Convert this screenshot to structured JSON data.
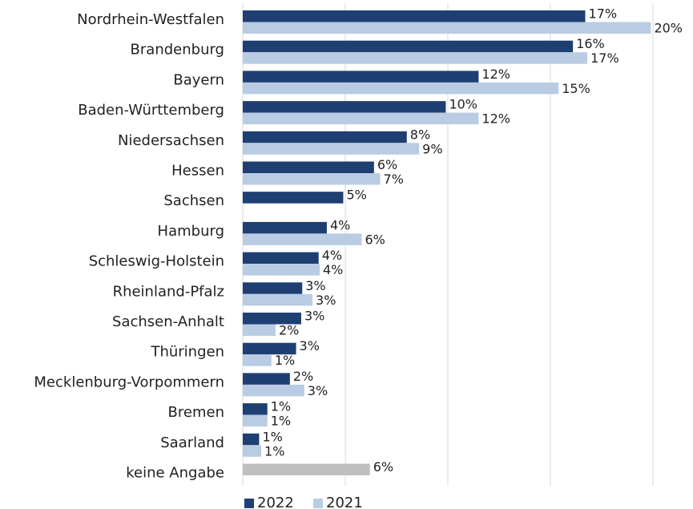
{
  "chart_data": {
    "type": "hbar",
    "categories": [
      "Nordrhein-Westfalen",
      "Brandenburg",
      "Bayern",
      "Baden-Württemberg",
      "Niedersachsen",
      "Hessen",
      "Sachsen",
      "Hamburg",
      "Schleswig-Holstein",
      "Rheinland-Pfalz",
      "Sachsen-Anhalt",
      "Thüringen",
      "Mecklenburg-Vorpommern",
      "Bremen",
      "Saarland",
      "keine Angabe"
    ],
    "series": [
      {
        "name": "2022",
        "color": "#1f3f73",
        "values": [
          16.7,
          16.1,
          11.5,
          9.9,
          8.0,
          6.4,
          4.9,
          4.1,
          3.7,
          2.9,
          2.85,
          2.6,
          2.3,
          1.2,
          0.8,
          6.2
        ],
        "value_labels": [
          "17%",
          "16%",
          "12%",
          "10%",
          "8%",
          "6%",
          "5%",
          "4%",
          "4%",
          "3%",
          "3%",
          "3%",
          "2%",
          "1%",
          "1%",
          "6%"
        ],
        "point_colors": [
          null,
          null,
          null,
          null,
          null,
          null,
          null,
          null,
          null,
          null,
          null,
          null,
          null,
          null,
          null,
          "#bfbfbf"
        ]
      },
      {
        "name": "2021",
        "color": "#b9cce4",
        "values": [
          19.9,
          16.8,
          15.4,
          11.5,
          8.6,
          6.7,
          null,
          5.8,
          3.75,
          3.4,
          1.6,
          1.4,
          3.0,
          1.2,
          0.9,
          null
        ],
        "value_labels": [
          "20%",
          "17%",
          "15%",
          "12%",
          "9%",
          "7%",
          null,
          "6%",
          "4%",
          "3%",
          "2%",
          "1%",
          "3%",
          "1%",
          "1%",
          null
        ]
      }
    ],
    "xlim": [
      0,
      20
    ],
    "xgrid": [
      0,
      5,
      10,
      15,
      20
    ],
    "grid": true
  }
}
